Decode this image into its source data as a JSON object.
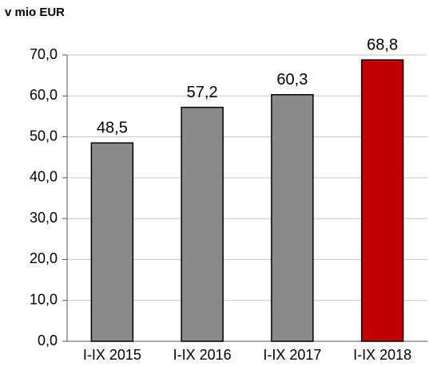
{
  "chart_data": {
    "type": "bar",
    "title": "v mio EUR",
    "categories": [
      "I-IX 2015",
      "I-IX 2016",
      "I-IX 2017",
      "I-IX 2018"
    ],
    "values": [
      48.5,
      57.2,
      60.3,
      68.8
    ],
    "value_labels": [
      "48,5",
      "57,2",
      "60,3",
      "68,8"
    ],
    "colors": [
      "#8a8a8a",
      "#8a8a8a",
      "#8a8a8a",
      "#c00000"
    ],
    "ylim": [
      0,
      70
    ],
    "yticks": [
      {
        "value": 0,
        "label": "0,0"
      },
      {
        "value": 10,
        "label": "10,0"
      },
      {
        "value": 20,
        "label": "20,0"
      },
      {
        "value": 30,
        "label": "30,0"
      },
      {
        "value": 40,
        "label": "40,0"
      },
      {
        "value": 50,
        "label": "50,0"
      },
      {
        "value": 60,
        "label": "60,0"
      },
      {
        "value": 70,
        "label": "70,0"
      }
    ],
    "grid": true
  }
}
